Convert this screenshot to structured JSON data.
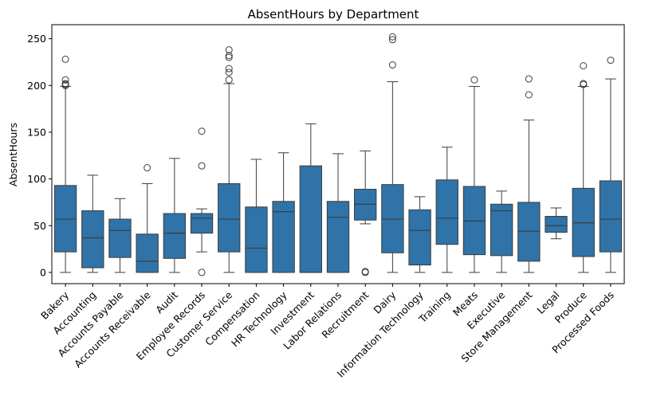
{
  "chart_data": {
    "type": "box",
    "title": "AbsentHours by Department",
    "xlabel": "",
    "ylabel": "AbsentHours",
    "ylim": [
      -12,
      265
    ],
    "yticks": [
      0,
      50,
      100,
      150,
      200,
      250
    ],
    "grid": false,
    "box_color": "#2f73a8",
    "categories": [
      "Bakery",
      "Accounting",
      "Accounts Payable",
      "Accounts Receivable",
      "Audit",
      "Employee Records",
      "Customer Service",
      "Compensation",
      "HR Technology",
      "Investment",
      "Labor Relations",
      "Recruitment",
      "Dairy",
      "Information Technology",
      "Training",
      "Meats",
      "Executive",
      "Store Management",
      "Legal",
      "Produce",
      "Processed Foods"
    ],
    "boxes": [
      {
        "whislo": 0,
        "q1": 22,
        "med": 57,
        "q3": 93,
        "whishi": 199,
        "fliers": [
          200,
          201,
          202,
          206,
          228
        ]
      },
      {
        "whislo": 0,
        "q1": 5,
        "med": 37,
        "q3": 66,
        "whishi": 104,
        "fliers": []
      },
      {
        "whislo": 0,
        "q1": 16,
        "med": 45,
        "q3": 57,
        "whishi": 79,
        "fliers": []
      },
      {
        "whislo": 0,
        "q1": 0,
        "med": 12,
        "q3": 41,
        "whishi": 95,
        "fliers": [
          112
        ]
      },
      {
        "whislo": 0,
        "q1": 15,
        "med": 42,
        "q3": 63,
        "whishi": 122,
        "fliers": []
      },
      {
        "whislo": 22,
        "q1": 42,
        "med": 58,
        "q3": 63,
        "whishi": 68,
        "fliers": [
          0,
          114,
          151
        ]
      },
      {
        "whislo": 0,
        "q1": 22,
        "med": 57,
        "q3": 95,
        "whishi": 202,
        "fliers": [
          206,
          214,
          218,
          230,
          232,
          238
        ]
      },
      {
        "whislo": 0,
        "q1": 0,
        "med": 26,
        "q3": 70,
        "whishi": 121,
        "fliers": []
      },
      {
        "whislo": 0,
        "q1": 0,
        "med": 65,
        "q3": 76,
        "whishi": 128,
        "fliers": []
      },
      {
        "whislo": 0,
        "q1": 0,
        "med": 0,
        "q3": 114,
        "whishi": 159,
        "fliers": []
      },
      {
        "whislo": 0,
        "q1": 0,
        "med": 59,
        "q3": 76,
        "whishi": 127,
        "fliers": []
      },
      {
        "whislo": 52,
        "q1": 56,
        "med": 73,
        "q3": 89,
        "whishi": 130,
        "fliers": [
          0,
          1
        ]
      },
      {
        "whislo": 0,
        "q1": 21,
        "med": 57,
        "q3": 94,
        "whishi": 204,
        "fliers": [
          222,
          249,
          252
        ]
      },
      {
        "whislo": 0,
        "q1": 8,
        "med": 45,
        "q3": 67,
        "whishi": 81,
        "fliers": []
      },
      {
        "whislo": 0,
        "q1": 30,
        "med": 58,
        "q3": 99,
        "whishi": 134,
        "fliers": []
      },
      {
        "whislo": 0,
        "q1": 19,
        "med": 55,
        "q3": 92,
        "whishi": 199,
        "fliers": [
          206
        ]
      },
      {
        "whislo": 0,
        "q1": 18,
        "med": 66,
        "q3": 73,
        "whishi": 87,
        "fliers": []
      },
      {
        "whislo": 0,
        "q1": 12,
        "med": 44,
        "q3": 75,
        "whishi": 163,
        "fliers": [
          190,
          207
        ]
      },
      {
        "whislo": 36,
        "q1": 43,
        "med": 50,
        "q3": 60,
        "whishi": 69,
        "fliers": []
      },
      {
        "whislo": 0,
        "q1": 17,
        "med": 53,
        "q3": 90,
        "whishi": 199,
        "fliers": [
          201,
          202,
          221
        ]
      },
      {
        "whislo": 0,
        "q1": 22,
        "med": 57,
        "q3": 98,
        "whishi": 207,
        "fliers": [
          227
        ]
      }
    ]
  }
}
